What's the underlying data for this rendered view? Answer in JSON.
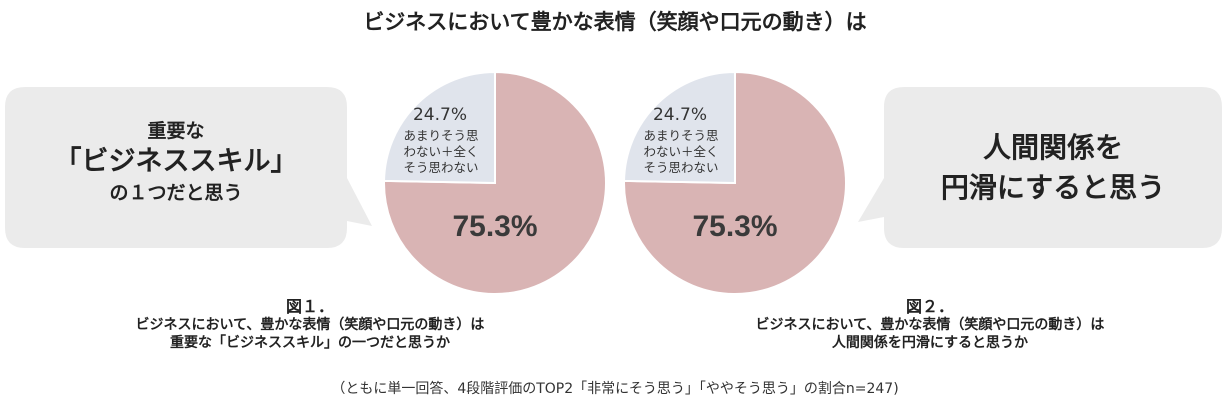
{
  "title": "ビジネスにおいて豊かな表情（笑顔や口元の動き）は",
  "bubbles": {
    "left": {
      "line1": "重要な",
      "line2": "「ビジネススキル」",
      "line3": "の１つだと思う"
    },
    "right": {
      "line1": "人間関係を",
      "line2": "円滑にすると思う"
    }
  },
  "captions": {
    "fig1": {
      "label": "図１．",
      "line1": "ビジネスにおいて、豊かな表情（笑顔や口元の動き）は",
      "line2": "重要な「ビジネススキル」の一つだと思うか"
    },
    "fig2": {
      "label": "図２．",
      "line1": "ビジネスにおいて、豊かな表情（笑顔や口元の動き）は",
      "line2": "人間関係を円滑にすると思うか"
    }
  },
  "note": "（ともに単一回答、4段階評価のTOP2「非常にそう思う」「ややそう思う」の割合n=247)",
  "colors": {
    "agree": "#d9b4b4",
    "disagree": "#e0e4ec",
    "bubble": "#ebebeb"
  },
  "chart_data": [
    {
      "type": "pie",
      "slices": [
        {
          "label": "",
          "value": 75.3,
          "value_label": "75.3%"
        },
        {
          "label": "あまりそう思わない＋全くそう思わない",
          "label_lines": [
            "あまりそう思",
            "わない＋全く",
            "そう思わない"
          ],
          "value": 24.7,
          "value_label": "24.7%"
        }
      ]
    },
    {
      "type": "pie",
      "slices": [
        {
          "label": "",
          "value": 75.3,
          "value_label": "75.3%"
        },
        {
          "label": "あまりそう思わない＋全くそう思わない",
          "label_lines": [
            "あまりそう思",
            "わない＋全く",
            "そう思わない"
          ],
          "value": 24.7,
          "value_label": "24.7%"
        }
      ]
    }
  ]
}
